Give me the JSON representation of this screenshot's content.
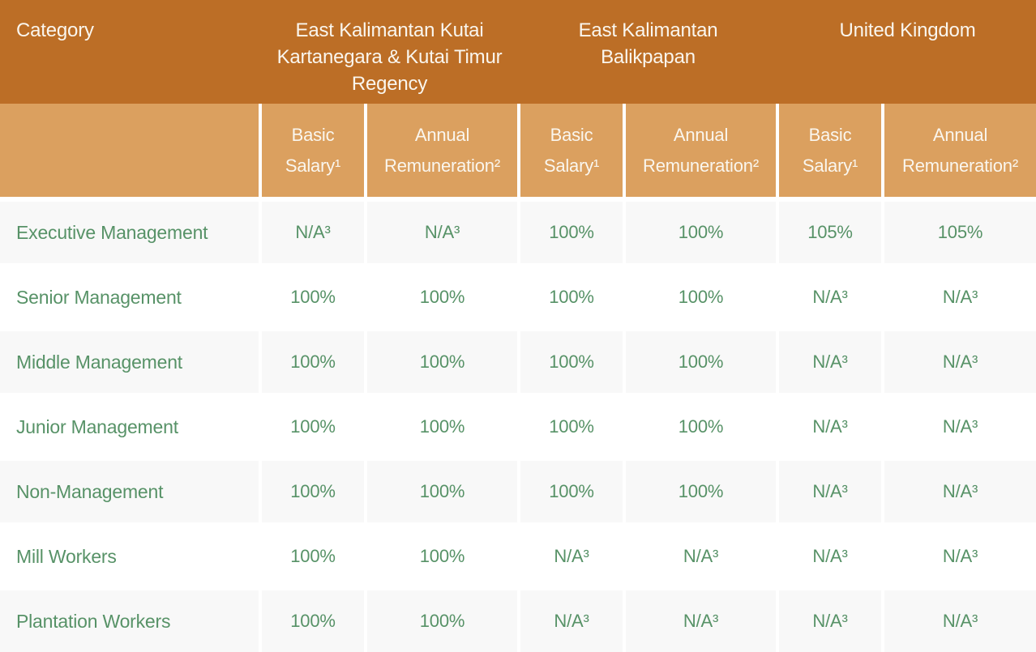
{
  "table": {
    "header": {
      "category_label": "Category",
      "groups": [
        {
          "lines": [
            "East Kalimantan Kutai",
            "Kartanegara & Kutai Timur",
            "Regency"
          ]
        },
        {
          "lines": [
            "East Kalimantan",
            "Balikpapan"
          ]
        },
        {
          "lines": [
            "United Kingdom"
          ]
        }
      ]
    },
    "subheader": {
      "labels": [
        "Basic Salary¹",
        "Annual Remuneration²",
        "Basic Salary¹",
        "Annual Remuneration²",
        "Basic Salary¹",
        "Annual Remuneration²"
      ]
    },
    "rows": [
      {
        "category": "Executive Management",
        "values": [
          "N/A³",
          "N/A³",
          "100%",
          "100%",
          "105%",
          "105%"
        ]
      },
      {
        "category": "Senior Management",
        "values": [
          "100%",
          "100%",
          "100%",
          "100%",
          "N/A³",
          "N/A³"
        ]
      },
      {
        "category": "Middle Management",
        "values": [
          "100%",
          "100%",
          "100%",
          "100%",
          "N/A³",
          "N/A³"
        ]
      },
      {
        "category": "Junior Management",
        "values": [
          "100%",
          "100%",
          "100%",
          "100%",
          "N/A³",
          "N/A³"
        ]
      },
      {
        "category": "Non-Management",
        "values": [
          "100%",
          "100%",
          "100%",
          "100%",
          "N/A³",
          "N/A³"
        ]
      },
      {
        "category": "Mill Workers",
        "values": [
          "100%",
          "100%",
          "N/A³",
          "N/A³",
          "N/A³",
          "N/A³"
        ]
      },
      {
        "category": "Plantation Workers",
        "values": [
          "100%",
          "100%",
          "N/A³",
          "N/A³",
          "N/A³",
          "N/A³"
        ]
      }
    ],
    "colors": {
      "header_bg": "#BC6E26",
      "subheader_bg": "#DBA05F",
      "row_shade_bg": "#F8F8F8",
      "text_green": "#579267",
      "header_text": "#FAF6EE"
    }
  }
}
